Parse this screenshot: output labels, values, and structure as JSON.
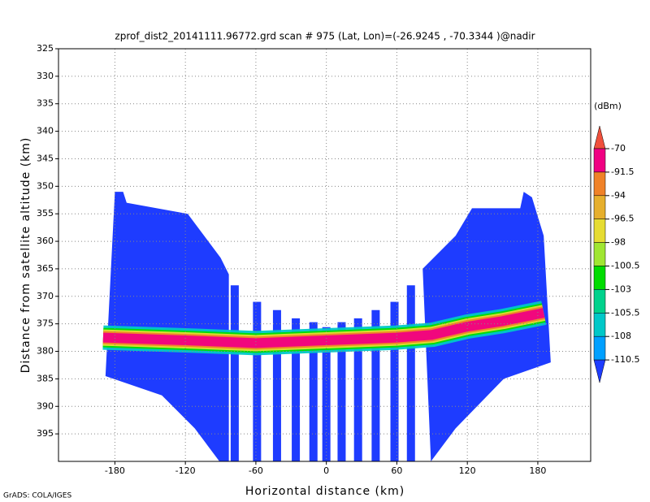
{
  "chart_data": {
    "type": "heatmap",
    "title": "zprof_dist2_20141111.96772.grd  scan # 975  (Lat, Lon)=(-26.9245 , -70.3344 )@nadir",
    "x_label": "Horizontal distance (km)",
    "y_label": "Distance from satellite altitude (km)",
    "footer": "GrADS: COLA/IGES",
    "xlim": [
      -228,
      225
    ],
    "xticks": [
      -180,
      -120,
      -60,
      0,
      60,
      120,
      180
    ],
    "ylim": [
      325,
      400
    ],
    "yticks": [
      325,
      330,
      335,
      340,
      345,
      350,
      355,
      360,
      365,
      370,
      375,
      380,
      385,
      390,
      395
    ],
    "grid": true,
    "colorbar": {
      "units": "(dBm)",
      "levels": [
        -70,
        -91.5,
        -94,
        -96.5,
        -98,
        -100.5,
        -103,
        -105.5,
        -108,
        -110.5
      ],
      "colors": [
        "#f0503c",
        "#f00082",
        "#f08228",
        "#e6af2d",
        "#e6dc32",
        "#a0e632",
        "#00dc00",
        "#00d28c",
        "#00c8c8",
        "#00a0ff",
        "#1e3cff"
      ]
    },
    "regions": [
      {
        "x": [
          -180,
          -173,
          -170,
          -118,
          -90,
          -83,
          -83,
          -91,
          -112,
          -140,
          -188
        ],
        "y": [
          351,
          351,
          353,
          355,
          363,
          366,
          400,
          400,
          394,
          388,
          384.5
        ]
      },
      {
        "x": [
          82,
          110,
          124,
          165,
          168,
          175,
          185,
          191,
          151,
          110,
          89
        ],
        "y": [
          365,
          359,
          354,
          354,
          351,
          352,
          359,
          382,
          385,
          394,
          400
        ]
      }
    ],
    "stripes": {
      "x": [
        -78,
        -59,
        -42,
        -26,
        -11,
        0,
        13,
        27,
        42,
        58,
        72
      ],
      "top": [
        368,
        371,
        372.5,
        374,
        374.7,
        375.6,
        374.7,
        374,
        372.5,
        371,
        368
      ]
    },
    "band": {
      "x": [
        -190,
        -120,
        -60,
        0,
        60,
        90,
        120,
        150,
        185
      ],
      "y": [
        377.5,
        378,
        378.5,
        378,
        377.5,
        377,
        375.5,
        374.5,
        373
      ]
    }
  }
}
